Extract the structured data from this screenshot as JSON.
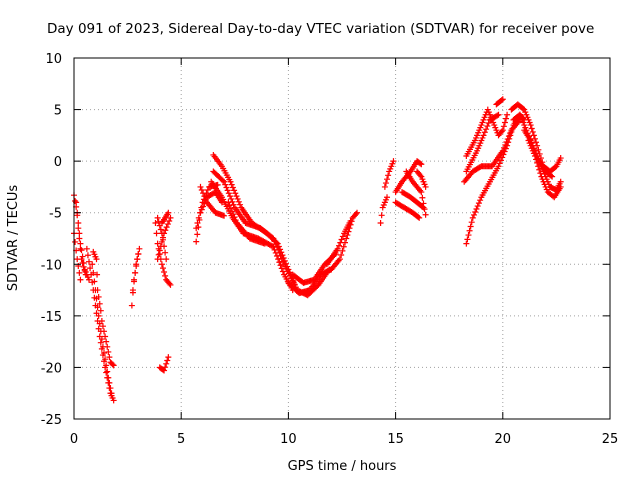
{
  "chart_data": {
    "type": "scatter",
    "title": "Day 091 of 2023, Sidereal Day-to-day VTEC variation (SDTVAR) for receiver pove",
    "xlabel": "GPS time / hours",
    "ylabel": "SDTVAR / TECUs",
    "xlim": [
      0,
      25
    ],
    "ylim": [
      -25,
      10
    ],
    "xticks": [
      0,
      5,
      10,
      15,
      20,
      25
    ],
    "yticks": [
      -25,
      -20,
      -15,
      -10,
      -5,
      0,
      5,
      10
    ],
    "grid": true,
    "marker": "+",
    "color": "#ff0000",
    "series": [
      {
        "name": "SDTVAR",
        "segments": [
          [
            [
              0.0,
              -3.3
            ],
            [
              0.15,
              -5.0
            ],
            [
              0.3,
              -8.0
            ],
            [
              0.5,
              -10.5
            ],
            [
              0.7,
              -11.5
            ]
          ],
          [
            [
              0.1,
              -4.0
            ],
            [
              0.2,
              -6.5
            ],
            [
              0.35,
              -9.5
            ],
            [
              0.55,
              -11.0
            ]
          ],
          [
            [
              0.0,
              -7.0
            ],
            [
              0.15,
              -9.5
            ],
            [
              0.3,
              -11.5
            ]
          ],
          [
            [
              0.6,
              -8.5
            ],
            [
              0.8,
              -11.0
            ],
            [
              1.0,
              -14.0
            ],
            [
              1.2,
              -17.0
            ],
            [
              1.45,
              -20.0
            ],
            [
              1.7,
              -22.5
            ],
            [
              1.85,
              -23.2
            ]
          ],
          [
            [
              0.85,
              -10.0
            ],
            [
              1.0,
              -12.5
            ],
            [
              1.15,
              -15.0
            ],
            [
              1.35,
              -18.0
            ],
            [
              1.6,
              -21.0
            ],
            [
              1.75,
              -22.5
            ]
          ],
          [
            [
              0.9,
              -8.8
            ],
            [
              1.05,
              -9.5
            ],
            [
              1.1,
              -12.5
            ],
            [
              1.25,
              -14.5
            ]
          ],
          [
            [
              1.3,
              -15.5
            ],
            [
              1.5,
              -17.5
            ],
            [
              1.7,
              -19.5
            ],
            [
              1.85,
              -19.8
            ]
          ],
          [
            [
              2.7,
              -14.0
            ],
            [
              2.8,
              -11.5
            ],
            [
              2.95,
              -9.5
            ],
            [
              3.05,
              -8.5
            ]
          ],
          [
            [
              2.75,
              -12.5
            ],
            [
              2.9,
              -10.0
            ],
            [
              3.0,
              -9.0
            ]
          ],
          [
            [
              3.8,
              -6.0
            ],
            [
              3.9,
              -8.0
            ],
            [
              4.1,
              -10.0
            ],
            [
              4.3,
              -11.5
            ],
            [
              4.5,
              -12.0
            ]
          ],
          [
            [
              3.9,
              -5.5
            ],
            [
              4.1,
              -7.0
            ],
            [
              4.3,
              -9.5
            ]
          ],
          [
            [
              3.9,
              -9.5
            ],
            [
              4.2,
              -7.0
            ],
            [
              4.5,
              -5.5
            ]
          ],
          [
            [
              4.1,
              -6.0
            ],
            [
              4.4,
              -5.0
            ]
          ],
          [
            [
              4.0,
              -20.0
            ],
            [
              4.2,
              -20.3
            ],
            [
              4.4,
              -19.0
            ]
          ],
          [
            [
              5.7,
              -7.8
            ],
            [
              5.9,
              -5.0
            ],
            [
              6.2,
              -3.5
            ],
            [
              6.6,
              -3.0
            ],
            [
              6.9,
              -4.0
            ]
          ],
          [
            [
              5.7,
              -6.5
            ],
            [
              6.0,
              -4.0
            ],
            [
              6.3,
              -2.5
            ],
            [
              6.7,
              -2.3
            ]
          ],
          [
            [
              5.9,
              -2.5
            ],
            [
              6.2,
              -4.0
            ],
            [
              6.6,
              -5.0
            ],
            [
              7.0,
              -5.3
            ]
          ],
          [
            [
              6.5,
              0.6
            ],
            [
              6.9,
              -0.5
            ],
            [
              7.3,
              -2.0
            ],
            [
              7.8,
              -4.5
            ],
            [
              8.3,
              -6.0
            ],
            [
              9.0,
              -7.0
            ],
            [
              9.5,
              -8.0
            ],
            [
              10.0,
              -10.5
            ],
            [
              10.4,
              -12.5
            ]
          ],
          [
            [
              6.5,
              -1.0
            ],
            [
              7.0,
              -2.0
            ],
            [
              7.5,
              -4.5
            ],
            [
              8.0,
              -6.0
            ],
            [
              8.7,
              -6.5
            ],
            [
              9.3,
              -7.5
            ],
            [
              9.8,
              -10.0
            ],
            [
              10.3,
              -12.0
            ]
          ],
          [
            [
              6.4,
              -2.0
            ],
            [
              6.9,
              -3.5
            ],
            [
              7.4,
              -5.5
            ],
            [
              7.9,
              -7.0
            ],
            [
              8.6,
              -7.5
            ],
            [
              9.3,
              -8.3
            ],
            [
              9.8,
              -11.0
            ],
            [
              10.2,
              -12.5
            ]
          ],
          [
            [
              7.2,
              -4.0
            ],
            [
              7.6,
              -6.0
            ],
            [
              8.2,
              -7.5
            ],
            [
              8.9,
              -8.0
            ]
          ],
          [
            [
              10.0,
              -11.8
            ],
            [
              10.5,
              -12.8
            ],
            [
              11.0,
              -12.5
            ],
            [
              11.5,
              -11.0
            ],
            [
              12.0,
              -10.5
            ]
          ],
          [
            [
              10.2,
              -11.0
            ],
            [
              10.7,
              -11.8
            ],
            [
              11.2,
              -11.5
            ],
            [
              11.7,
              -10.0
            ],
            [
              12.2,
              -9.0
            ]
          ],
          [
            [
              10.4,
              -12.5
            ],
            [
              10.9,
              -13.0
            ],
            [
              11.4,
              -12.0
            ],
            [
              11.9,
              -10.5
            ]
          ],
          [
            [
              12.0,
              -10.5
            ],
            [
              12.4,
              -9.5
            ],
            [
              12.7,
              -7.5
            ],
            [
              13.0,
              -5.5
            ],
            [
              13.2,
              -5.0
            ]
          ],
          [
            [
              11.8,
              -10.0
            ],
            [
              12.3,
              -8.5
            ],
            [
              12.6,
              -7.0
            ],
            [
              12.9,
              -5.8
            ]
          ],
          [
            [
              14.3,
              -6.0
            ],
            [
              14.4,
              -4.5
            ],
            [
              14.6,
              -3.5
            ]
          ],
          [
            [
              14.5,
              -2.5
            ],
            [
              14.7,
              -1.0
            ],
            [
              14.9,
              0.0
            ]
          ],
          [
            [
              15.0,
              -3.0
            ],
            [
              15.3,
              -2.0
            ],
            [
              15.7,
              -1.0
            ],
            [
              16.0,
              0.0
            ],
            [
              16.2,
              -0.3
            ]
          ],
          [
            [
              15.0,
              -4.0
            ],
            [
              15.4,
              -4.5
            ],
            [
              15.8,
              -5.0
            ],
            [
              16.1,
              -5.5
            ]
          ],
          [
            [
              15.3,
              -3.0
            ],
            [
              15.7,
              -3.5
            ],
            [
              16.0,
              -4.0
            ],
            [
              16.3,
              -4.5
            ]
          ],
          [
            [
              15.5,
              -1.0
            ],
            [
              15.8,
              -2.0
            ],
            [
              16.2,
              -3.0
            ],
            [
              16.4,
              -5.2
            ]
          ],
          [
            [
              16.0,
              -1.0
            ],
            [
              16.2,
              -1.5
            ],
            [
              16.4,
              -2.5
            ]
          ],
          [
            [
              18.3,
              -8.0
            ],
            [
              18.6,
              -5.5
            ],
            [
              19.0,
              -3.5
            ],
            [
              19.4,
              -2.0
            ],
            [
              19.8,
              -0.5
            ],
            [
              20.2,
              1.5
            ],
            [
              20.5,
              3.5
            ],
            [
              20.8,
              4.5
            ],
            [
              21.0,
              4.0
            ]
          ],
          [
            [
              18.2,
              -2.0
            ],
            [
              18.6,
              -1.0
            ],
            [
              19.0,
              -0.5
            ],
            [
              19.5,
              -0.5
            ],
            [
              20.0,
              1.0
            ],
            [
              20.4,
              3.0
            ],
            [
              20.8,
              4.0
            ]
          ],
          [
            [
              18.3,
              -1.0
            ],
            [
              18.8,
              1.0
            ],
            [
              19.1,
              2.5
            ],
            [
              19.4,
              4.0
            ],
            [
              19.8,
              4.5
            ]
          ],
          [
            [
              18.3,
              0.5
            ],
            [
              18.7,
              2.0
            ],
            [
              19.0,
              3.5
            ],
            [
              19.3,
              5.0
            ],
            [
              19.5,
              4.0
            ],
            [
              19.8,
              2.5
            ],
            [
              20.0,
              3.0
            ],
            [
              20.2,
              4.5
            ]
          ],
          [
            [
              19.7,
              5.5
            ],
            [
              20.0,
              6.0
            ]
          ],
          [
            [
              20.4,
              5.0
            ],
            [
              20.7,
              5.5
            ],
            [
              21.0,
              5.0
            ],
            [
              21.3,
              3.5
            ],
            [
              21.6,
              1.5
            ],
            [
              21.9,
              -0.5
            ],
            [
              22.2,
              -1.0
            ],
            [
              22.5,
              -0.5
            ],
            [
              22.7,
              0.3
            ]
          ],
          [
            [
              20.5,
              4.0
            ],
            [
              20.8,
              4.5
            ],
            [
              21.1,
              3.0
            ],
            [
              21.4,
              1.5
            ],
            [
              21.7,
              0.0
            ],
            [
              22.0,
              -1.0
            ],
            [
              22.3,
              -1.5
            ]
          ],
          [
            [
              21.0,
              3.0
            ],
            [
              21.3,
              2.0
            ],
            [
              21.6,
              0.5
            ],
            [
              21.9,
              -1.0
            ],
            [
              22.2,
              -2.5
            ],
            [
              22.5,
              -2.8
            ],
            [
              22.7,
              -2.0
            ]
          ],
          [
            [
              21.2,
              2.0
            ],
            [
              21.5,
              0.5
            ],
            [
              21.8,
              -1.5
            ],
            [
              22.1,
              -3.0
            ],
            [
              22.4,
              -3.5
            ],
            [
              22.7,
              -2.5
            ]
          ]
        ]
      }
    ]
  }
}
